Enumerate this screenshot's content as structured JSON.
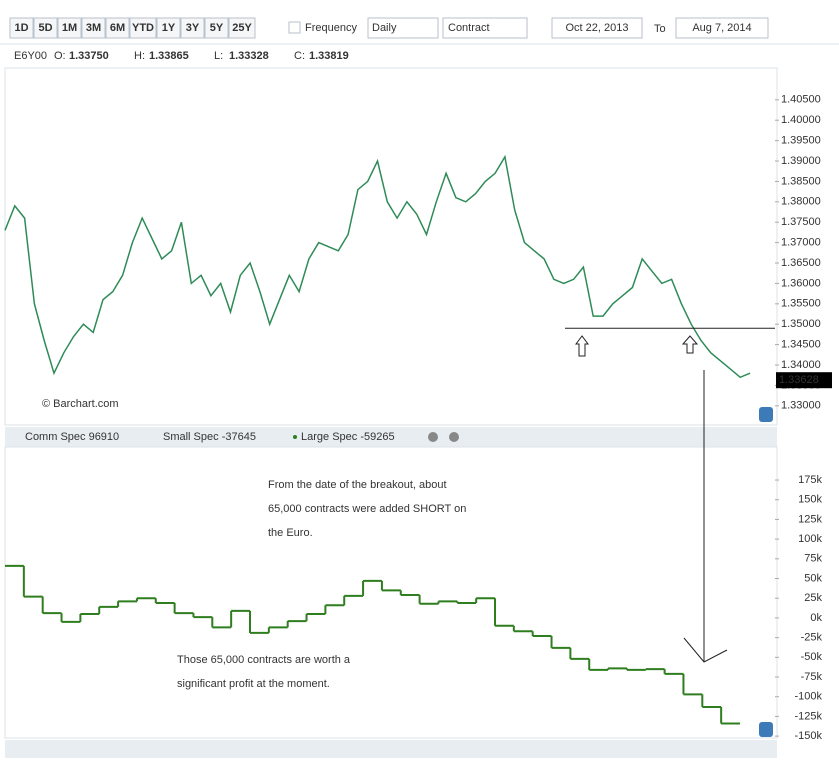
{
  "toolbar": {
    "periods": [
      "1D",
      "5D",
      "1M",
      "3M",
      "6M",
      "YTD",
      "1Y",
      "3Y",
      "5Y",
      "25Y"
    ],
    "frequency_label": "Frequency",
    "frequency": "Daily",
    "mode": "Contract",
    "date_from": "Oct 22, 2013",
    "to_label": "To",
    "date_to": "Aug 7, 2014"
  },
  "quote": {
    "symbol": "E6Y00",
    "fields": [
      {
        "name": "O:",
        "value": "1.33750"
      },
      {
        "name": "H:",
        "value": "1.33865"
      },
      {
        "name": "L:",
        "value": "1.33328"
      },
      {
        "name": "C:",
        "value": "1.33819"
      }
    ]
  },
  "chart_data": [
    {
      "type": "line",
      "color": "#2e8b57",
      "credit": "© Barchart.com",
      "values": [
        1.373,
        1.379,
        1.376,
        1.355,
        1.346,
        1.338,
        1.343,
        1.347,
        1.35,
        1.348,
        1.356,
        1.358,
        1.362,
        1.37,
        1.376,
        1.371,
        1.366,
        1.368,
        1.375,
        1.36,
        1.362,
        1.357,
        1.36,
        1.353,
        1.362,
        1.365,
        1.358,
        1.35,
        1.356,
        1.362,
        1.358,
        1.366,
        1.37,
        1.369,
        1.368,
        1.372,
        1.383,
        1.385,
        1.39,
        1.38,
        1.376,
        1.38,
        1.377,
        1.372,
        1.38,
        1.387,
        1.381,
        1.38,
        1.382,
        1.385,
        1.387,
        1.391,
        1.378,
        1.37,
        1.368,
        1.366,
        1.361,
        1.36,
        1.361,
        1.364,
        1.352,
        1.352,
        1.355,
        1.357,
        1.359,
        1.366,
        1.363,
        1.36,
        1.361,
        1.355,
        1.35,
        1.346,
        1.343,
        1.341,
        1.339,
        1.337,
        1.338
      ],
      "ylim": [
        1.3253,
        1.4128
      ],
      "yticks": [
        {
          "value": 1.405,
          "label": "1.40500"
        },
        {
          "value": 1.4,
          "label": "1.40000"
        },
        {
          "value": 1.395,
          "label": "1.39500"
        },
        {
          "value": 1.39,
          "label": "1.39000"
        },
        {
          "value": 1.385,
          "label": "1.38500"
        },
        {
          "value": 1.38,
          "label": "1.38000"
        },
        {
          "value": 1.375,
          "label": "1.37500"
        },
        {
          "value": 1.37,
          "label": "1.37000"
        },
        {
          "value": 1.365,
          "label": "1.36500"
        },
        {
          "value": 1.36,
          "label": "1.36000"
        },
        {
          "value": 1.355,
          "label": "1.35500"
        },
        {
          "value": 1.35,
          "label": "1.35000"
        },
        {
          "value": 1.345,
          "label": "1.34500"
        },
        {
          "value": 1.34,
          "label": "1.34000"
        },
        {
          "value": 1.335,
          "label": "1.33500"
        },
        {
          "value": 1.33,
          "label": "1.33000"
        }
      ],
      "support_line": 1.349,
      "last_value": {
        "value": 1.33628,
        "label": "1.33628"
      }
    },
    {
      "type": "step",
      "series": [
        {
          "name": "Large Spec -59265",
          "color": "#2e7d1e",
          "values": [
            66000,
            27000,
            6000,
            -5000,
            5000,
            14000,
            21000,
            25000,
            19000,
            6000,
            1000,
            -12000,
            9000,
            -19000,
            -12000,
            -4000,
            5000,
            16000,
            28000,
            47000,
            35000,
            29000,
            18000,
            21000,
            19000,
            25000,
            -10000,
            -17000,
            -23000,
            -38000,
            -52000,
            -66000,
            -64000,
            -66000,
            -65000,
            -71000,
            -97000,
            -113000,
            -134000
          ]
        }
      ],
      "hidden_series": [
        {
          "name": "Comm Spec 96910",
          "color": "#c9d2dc"
        },
        {
          "name": "Small Spec -37645",
          "color": "#c9d2dc"
        }
      ],
      "ylim": [
        -152400,
        216900
      ],
      "yticks": [
        {
          "value": 175000,
          "label": "175k"
        },
        {
          "value": 150000,
          "label": "150k"
        },
        {
          "value": 125000,
          "label": "125k"
        },
        {
          "value": 100000,
          "label": "100k"
        },
        {
          "value": 75000,
          "label": "75k"
        },
        {
          "value": 50000,
          "label": "50k"
        },
        {
          "value": 25000,
          "label": "25k"
        },
        {
          "value": 0,
          "label": "0k"
        },
        {
          "value": -25000,
          "label": "-25k"
        },
        {
          "value": -50000,
          "label": "-50k"
        },
        {
          "value": -75000,
          "label": "-75k"
        },
        {
          "value": -100000,
          "label": "-100k"
        },
        {
          "value": -125000,
          "label": "-125k"
        },
        {
          "value": -150000,
          "label": "-150k"
        }
      ],
      "annotations": [
        [
          "From the date of the breakout, about",
          "65,000 contracts were added SHORT on",
          "the Euro."
        ],
        [
          "Those 65,000 contracts are worth a",
          "significant profit at the moment."
        ]
      ]
    }
  ]
}
